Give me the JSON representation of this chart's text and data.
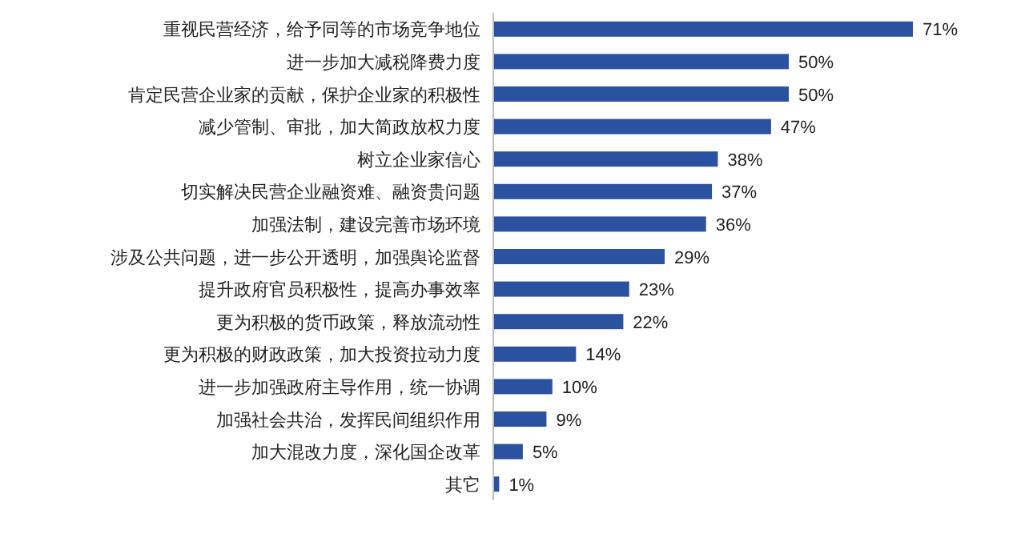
{
  "chart_data": {
    "type": "bar",
    "orientation": "horizontal",
    "color": "#2a52a0",
    "categories": [
      "重视民营经济，给予同等的市场竞争地位",
      "进一步加大减税降费力度",
      "肯定民营企业家的贡献，保护企业家的积极性",
      "减少管制、审批，加大简政放权力度",
      "树立企业家信心",
      "切实解决民营企业融资难、融资贵问题",
      "加强法制，建设完善市场环境",
      "涉及公共问题，进一步公开透明，加强舆论监督",
      "提升政府官员积极性，提高办事效率",
      "更为积极的货币政策，释放流动性",
      "更为积极的财政政策，加大投资拉动力度",
      "进一步加强政府主导作用，统一协调",
      "加强社会共治，发挥民间组织作用",
      "加大混改力度，深化国企改革",
      "其它"
    ],
    "values": [
      71,
      50,
      50,
      47,
      38,
      37,
      36,
      29,
      23,
      22,
      14,
      10,
      9,
      5,
      1
    ],
    "value_labels": [
      "71%",
      "50%",
      "50%",
      "47%",
      "38%",
      "37%",
      "36%",
      "29%",
      "23%",
      "22%",
      "14%",
      "10%",
      "9%",
      "5%",
      "1%"
    ]
  }
}
